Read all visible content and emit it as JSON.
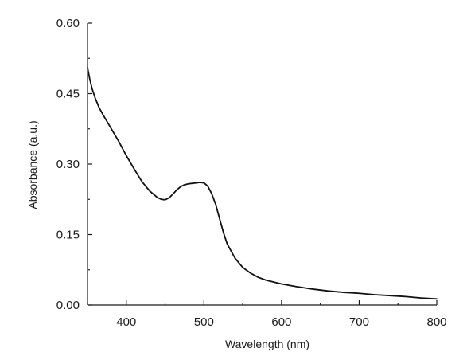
{
  "chart_data": {
    "type": "line",
    "title": "",
    "xlabel": "Wavelength (nm)",
    "ylabel": "Absorbance (a.u.)",
    "xlim": [
      350,
      800
    ],
    "ylim": [
      0,
      0.6
    ],
    "xticks": [
      400,
      500,
      600,
      700,
      800
    ],
    "xtick_labels": [
      "400",
      "500",
      "600",
      "700",
      "800"
    ],
    "yticks": [
      0,
      0.15,
      0.3,
      0.45,
      0.6
    ],
    "ytick_labels": [
      "0.00",
      "0.15",
      "0.30",
      "0.45",
      "0.60"
    ],
    "grid": false,
    "series": [
      {
        "color": "#111111",
        "x": [
          350,
          353,
          356,
          360,
          365,
          370,
          380,
          390,
          400,
          410,
          420,
          430,
          440,
          445,
          450,
          455,
          460,
          465,
          470,
          475,
          480,
          485,
          490,
          495,
          500,
          505,
          510,
          515,
          520,
          525,
          530,
          540,
          550,
          560,
          570,
          580,
          590,
          600,
          620,
          640,
          660,
          680,
          700,
          720,
          740,
          760,
          780,
          800
        ],
        "y": [
          0.505,
          0.48,
          0.46,
          0.44,
          0.42,
          0.405,
          0.377,
          0.349,
          0.318,
          0.29,
          0.263,
          0.243,
          0.229,
          0.225,
          0.224,
          0.228,
          0.236,
          0.245,
          0.252,
          0.256,
          0.258,
          0.259,
          0.26,
          0.261,
          0.26,
          0.253,
          0.237,
          0.215,
          0.185,
          0.155,
          0.13,
          0.1,
          0.08,
          0.068,
          0.059,
          0.053,
          0.049,
          0.045,
          0.039,
          0.034,
          0.03,
          0.027,
          0.025,
          0.022,
          0.02,
          0.018,
          0.015,
          0.013
        ]
      }
    ]
  }
}
